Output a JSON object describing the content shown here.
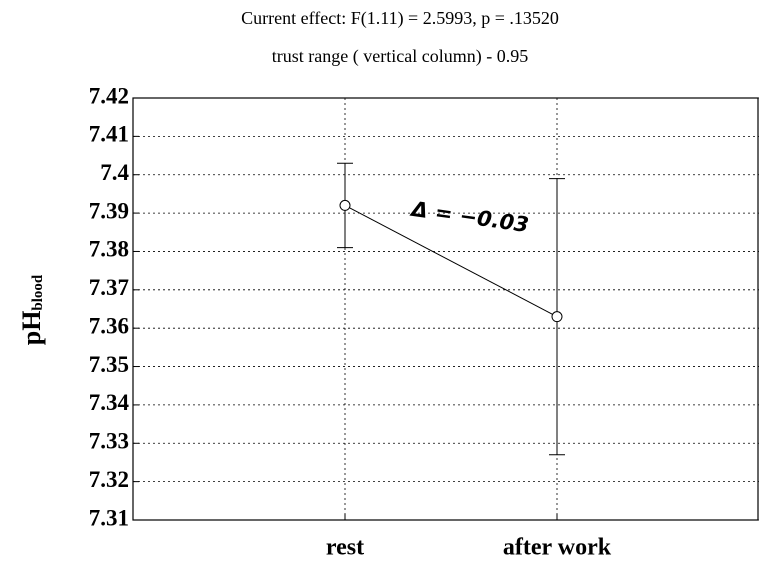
{
  "chart_data": {
    "type": "line",
    "title": "Current effect: F(1.11) = 2.5993, p = .13520",
    "subtitle": "trust  range ( vertical column) - 0.95",
    "y_label": "pH",
    "y_label_sub": "blood",
    "annotation": "Δ = −0.03",
    "categories": [
      "rest",
      "after work"
    ],
    "series": [
      {
        "name": "pH",
        "color": "#000000",
        "values": [
          7.392,
          7.363
        ],
        "errors": [
          0.011,
          0.036
        ]
      }
    ],
    "ylim": [
      7.31,
      7.42
    ],
    "yticks": [
      7.31,
      7.32,
      7.33,
      7.34,
      7.35,
      7.36,
      7.37,
      7.38,
      7.39,
      7.4,
      7.41,
      7.42
    ],
    "grid": true
  }
}
